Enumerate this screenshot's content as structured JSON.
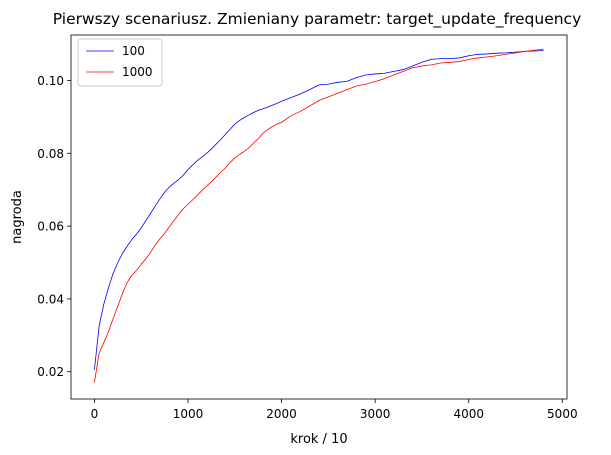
{
  "chart_data": {
    "type": "line",
    "title": "Pierwszy scenariusz. Zmieniany parametr: target_update_frequency",
    "xlabel": "krok / 10",
    "ylabel": "nagroda",
    "xlim": [
      -250,
      5050
    ],
    "ylim": [
      0.0125,
      0.1125
    ],
    "xticks": [
      0,
      1000,
      2000,
      3000,
      4000,
      5000
    ],
    "xtick_labels": [
      "0",
      "1000",
      "2000",
      "3000",
      "4000",
      "5000"
    ],
    "yticks": [
      0.02,
      0.04,
      0.06,
      0.08,
      0.1
    ],
    "ytick_labels": [
      "0.02",
      "0.04",
      "0.06",
      "0.08",
      "0.10"
    ],
    "grid": false,
    "legend_position": "top-left",
    "series": [
      {
        "name": "100",
        "color": "#0000ff",
        "x": [
          0,
          50,
          100,
          150,
          200,
          250,
          300,
          350,
          400,
          450,
          500,
          550,
          600,
          650,
          700,
          750,
          800,
          850,
          900,
          950,
          1000,
          1050,
          1100,
          1150,
          1200,
          1250,
          1300,
          1350,
          1400,
          1450,
          1500,
          1550,
          1600,
          1650,
          1700,
          1750,
          1800,
          1850,
          1900,
          1950,
          2000,
          2100,
          2200,
          2300,
          2400,
          2500,
          2600,
          2700,
          2800,
          2900,
          3000,
          3100,
          3200,
          3300,
          3400,
          3500,
          3600,
          3700,
          3800,
          3900,
          4000,
          4100,
          4200,
          4300,
          4400,
          4500,
          4600,
          4700,
          4800
        ],
        "values": [
          0.0205,
          0.0325,
          0.0385,
          0.043,
          0.047,
          0.05,
          0.0525,
          0.0545,
          0.0563,
          0.0578,
          0.0595,
          0.0615,
          0.0635,
          0.0655,
          0.0675,
          0.0693,
          0.0707,
          0.0718,
          0.0728,
          0.074,
          0.0755,
          0.0768,
          0.078,
          0.079,
          0.08,
          0.0812,
          0.0825,
          0.0838,
          0.0852,
          0.0866,
          0.088,
          0.089,
          0.0898,
          0.0905,
          0.0912,
          0.0918,
          0.0922,
          0.0927,
          0.0932,
          0.0937,
          0.0943,
          0.0953,
          0.0963,
          0.0975,
          0.0988,
          0.099,
          0.0995,
          0.0998,
          0.1008,
          0.1015,
          0.1018,
          0.102,
          0.1025,
          0.103,
          0.104,
          0.105,
          0.1058,
          0.106,
          0.106,
          0.1062,
          0.1068,
          0.1072,
          0.1073,
          0.1075,
          0.1076,
          0.1078,
          0.108,
          0.1081,
          0.1082
        ]
      },
      {
        "name": "1000",
        "color": "#ff0000",
        "x": [
          0,
          50,
          100,
          150,
          200,
          250,
          300,
          350,
          400,
          450,
          500,
          550,
          600,
          650,
          700,
          750,
          800,
          850,
          900,
          950,
          1000,
          1050,
          1100,
          1150,
          1200,
          1250,
          1300,
          1350,
          1400,
          1450,
          1500,
          1550,
          1600,
          1650,
          1700,
          1750,
          1800,
          1850,
          1900,
          1950,
          2000,
          2100,
          2200,
          2300,
          2400,
          2500,
          2600,
          2700,
          2800,
          2900,
          3000,
          3100,
          3200,
          3300,
          3400,
          3500,
          3600,
          3700,
          3800,
          3900,
          4000,
          4100,
          4200,
          4300,
          4400,
          4500,
          4600,
          4700,
          4800
        ],
        "values": [
          0.017,
          0.025,
          0.028,
          0.031,
          0.0345,
          0.038,
          0.0415,
          0.0445,
          0.0465,
          0.0478,
          0.0495,
          0.051,
          0.0528,
          0.0548,
          0.0565,
          0.058,
          0.0598,
          0.0615,
          0.0632,
          0.0648,
          0.066,
          0.0672,
          0.0685,
          0.0698,
          0.071,
          0.0722,
          0.0735,
          0.0748,
          0.076,
          0.0775,
          0.0787,
          0.0797,
          0.0805,
          0.0815,
          0.0828,
          0.084,
          0.0855,
          0.0865,
          0.0873,
          0.088,
          0.0885,
          0.0903,
          0.0915,
          0.093,
          0.0945,
          0.0955,
          0.0965,
          0.0975,
          0.0985,
          0.099,
          0.0997,
          0.1005,
          0.1015,
          0.1025,
          0.1035,
          0.104,
          0.1043,
          0.1048,
          0.105,
          0.1052,
          0.1058,
          0.1062,
          0.1065,
          0.1068,
          0.1072,
          0.1076,
          0.108,
          0.1083,
          0.1086
        ]
      }
    ]
  }
}
